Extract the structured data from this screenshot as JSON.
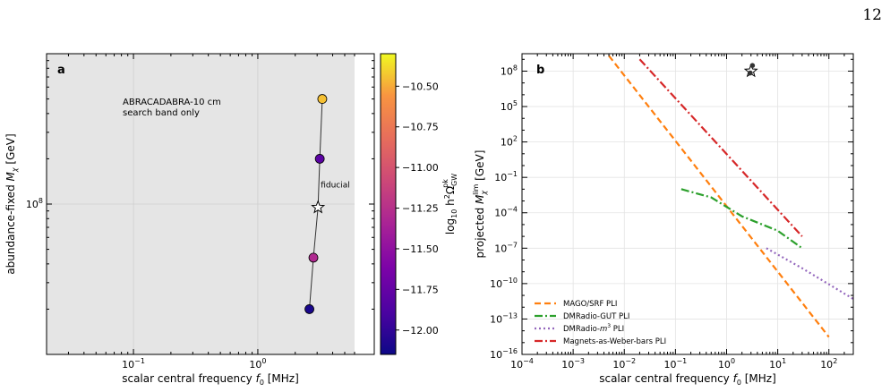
{
  "page_number": "12",
  "chart_data": [
    {
      "type": "scatter",
      "panel_label": "a",
      "xlabel": "scalar central frequency $f_0$ [MHz]",
      "ylabel": "abundance-fixed $M_\\chi$ [GeV]",
      "x_scale": "log",
      "y_scale": "log",
      "xlim": [
        0.02,
        6.0
      ],
      "ylim": [
        10000000.0,
        1000000000.0
      ],
      "x_tick_labels": [
        {
          "value": 0.1,
          "label": "10^{-1}"
        },
        {
          "value": 1,
          "label": "10^{0}"
        }
      ],
      "y_tick_labels": [
        {
          "value": 100000000.0,
          "label": "10^{8}"
        }
      ],
      "annotation": [
        "ABRACADABRA-10 cm",
        "search band only"
      ],
      "fiducial_label": "fiducial",
      "background": "#e5e5e5",
      "grid": true,
      "points": [
        {
          "x": 2.6,
          "y": 20000000.0,
          "c": -12.1
        },
        {
          "x": 2.8,
          "y": 44000000.0,
          "c": -11.3
        },
        {
          "x": 3.05,
          "y": 95000000.0,
          "c": -11.05,
          "marker": "star"
        },
        {
          "x": 3.15,
          "y": 200000000.0,
          "c": -11.8
        },
        {
          "x": 3.3,
          "y": 500000000.0,
          "c": -10.45
        }
      ],
      "colorbar": {
        "label": "log10 h^2 Omega_GW^pk",
        "cmap": "plasma",
        "range": [
          -12.15,
          -10.3
        ],
        "ticks": [
          "-10.50",
          "-10.75",
          "-11.00",
          "-11.25",
          "-11.50",
          "-11.75",
          "-12.00"
        ],
        "tick_values": [
          -10.5,
          -10.75,
          -11.0,
          -11.25,
          -11.5,
          -11.75,
          -12.0
        ]
      }
    },
    {
      "type": "line",
      "panel_label": "b",
      "xlabel": "scalar central frequency $f_0$ [MHz]",
      "ylabel": "projected $M_\\chi^{\\rm lim}$ [GeV]",
      "x_scale": "log",
      "y_scale": "log",
      "xlim": [
        0.0001,
        300
      ],
      "ylim": [
        1e-16,
        3000000000.0
      ],
      "x_tick_labels": [
        "10^{-4}",
        "10^{-3}",
        "10^{-2}",
        "10^{-1}",
        "10^{0}",
        "10^{1}",
        "10^{2}"
      ],
      "x_tick_values": [
        0.0001,
        0.001,
        0.01,
        0.1,
        1,
        10,
        100
      ],
      "y_tick_labels": [
        "10^{-16}",
        "10^{-13}",
        "10^{-10}",
        "10^{-7}",
        "10^{-4}",
        "10^{-1}",
        "10^{2}",
        "10^{5}",
        "10^{8}"
      ],
      "y_tick_values": [
        1e-16,
        1e-13,
        1e-10,
        1e-07,
        0.0001,
        0.1,
        100,
        100000,
        100000000
      ],
      "grid": true,
      "legend_position": "lower-left",
      "series": [
        {
          "name": "MAGO/SRF PLI",
          "color": "#ff7f0e",
          "style": "dashed",
          "x": [
            0.005,
            100
          ],
          "y": [
            2000000000.0,
            3e-15
          ]
        },
        {
          "name": "DMRadio-GUT PLI",
          "color": "#2ca02c",
          "style": "dashdot",
          "x": [
            0.13,
            0.5,
            2,
            10,
            30
          ],
          "y": [
            0.01,
            0.002,
            5e-05,
            3e-06,
            1e-07
          ]
        },
        {
          "name": "DMRadio-$m^3$ PLI",
          "color": "#9467bd",
          "style": "dotted",
          "x": [
            6,
            30,
            300
          ],
          "y": [
            1e-07,
            2e-09,
            5e-12
          ]
        },
        {
          "name": "Magnets-as-Weber-bars PLI",
          "color": "#d62728",
          "style": "dashdot",
          "x": [
            0.02,
            30
          ],
          "y": [
            1000000000.0,
            1e-06
          ]
        }
      ],
      "markers": [
        {
          "x": 3.0,
          "y": 100000000.0,
          "marker": "star"
        },
        {
          "x": 3.2,
          "y": 300000000.0,
          "marker": "dot"
        },
        {
          "x": 2.9,
          "y": 70000000.0,
          "marker": "dot"
        }
      ]
    }
  ]
}
